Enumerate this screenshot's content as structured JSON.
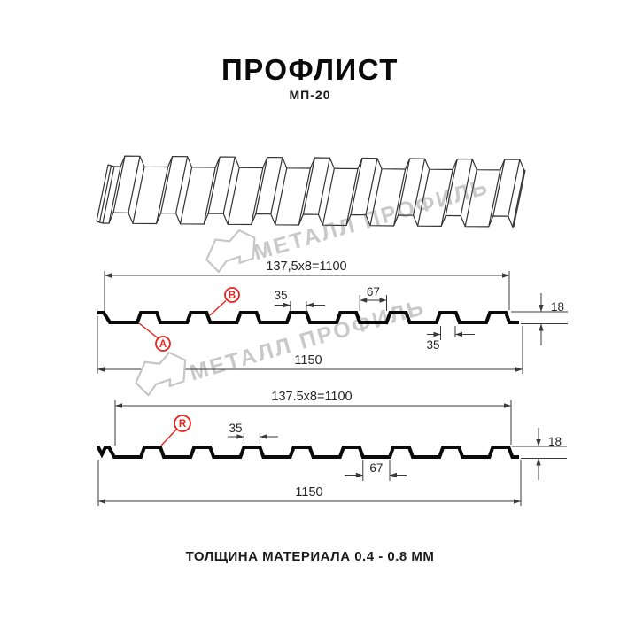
{
  "page": {
    "title": "ПРОФЛИСТ",
    "subtitle": "МП-20",
    "footer": "ТОЛЩИНА МАТЕРИАЛА 0.4 - 0.8 ММ"
  },
  "watermark": {
    "text": "МЕТАЛЛ ПРОФИЛЬ"
  },
  "colors": {
    "accent_red": "#e8231f",
    "profile_line": "#0a0a0a",
    "dimension_line": "#3a3a3a",
    "watermark_gray": "#c9c9c9"
  },
  "sections": [
    {
      "name": "cross-section-top",
      "pitch_label": "137,5x8=1100",
      "rib_top_width": "35",
      "valley_width": "67",
      "height": "18",
      "rib_bottom_width": "35",
      "total_width": "1150",
      "point_a": "A",
      "point_b": "B"
    },
    {
      "name": "cross-section-bottom",
      "pitch_label": "137.5x8=1100",
      "rib_top_width": "35",
      "valley_width": "67",
      "height": "18",
      "total_width": "1150",
      "point_r": "R"
    }
  ]
}
